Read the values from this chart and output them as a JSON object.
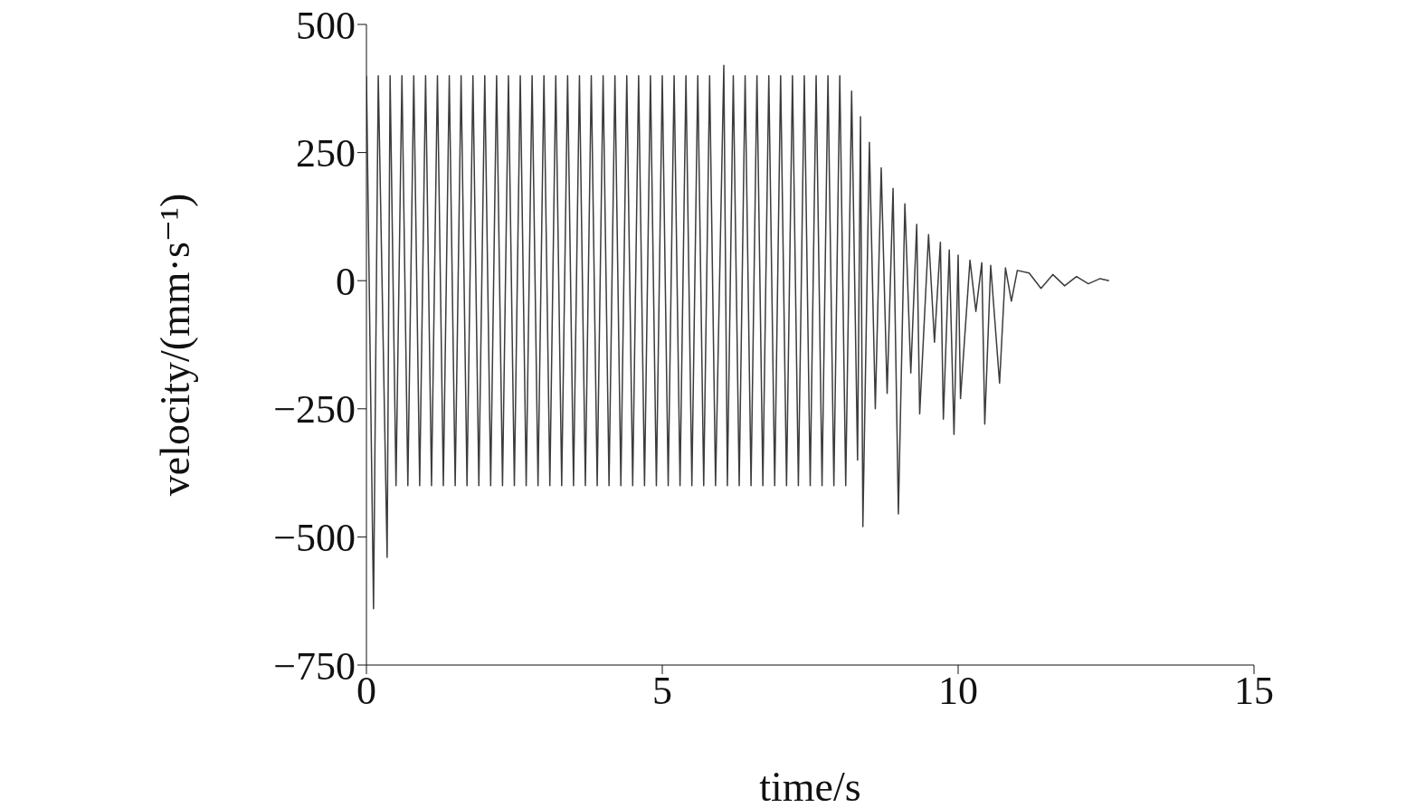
{
  "chart_data": {
    "type": "line",
    "xlabel": "time/s",
    "ylabel": "velocity/(mm·s⁻¹)",
    "xlim": [
      0,
      15
    ],
    "xticks": [
      0,
      5,
      10,
      15
    ],
    "ylim": [
      -750,
      500
    ],
    "yticks": [
      -750,
      -500,
      -250,
      0,
      250,
      500
    ],
    "marker": "none",
    "line_style": "solid",
    "x": [
      0,
      0.12,
      0.2,
      0.35,
      0.4,
      0.5,
      0.6,
      0.7,
      0.8,
      0.9,
      1,
      1.1,
      1.2,
      1.3,
      1.4,
      1.5,
      1.6,
      1.7,
      1.8,
      1.9,
      2,
      2.1,
      2.2,
      2.3,
      2.4,
      2.5,
      2.6,
      2.7,
      2.8,
      2.9,
      3,
      3.1,
      3.2,
      3.3,
      3.4,
      3.5,
      3.6,
      3.7,
      3.8,
      3.9,
      4,
      4.1,
      4.2,
      4.3,
      4.4,
      4.5,
      4.6,
      4.7,
      4.8,
      4.9,
      5,
      5.1,
      5.2,
      5.3,
      5.4,
      5.5,
      5.6,
      5.7,
      5.8,
      5.9,
      6.04,
      6.1,
      6.2,
      6.3,
      6.4,
      6.5,
      6.6,
      6.7,
      6.8,
      6.9,
      7,
      7.1,
      7.2,
      7.3,
      7.4,
      7.5,
      7.6,
      7.7,
      7.8,
      7.9,
      8,
      8.1,
      8.2,
      8.3,
      8.35,
      8.39,
      8.5,
      8.6,
      8.7,
      8.8,
      8.9,
      8.99,
      9.1,
      9.2,
      9.3,
      9.35,
      9.5,
      9.6,
      9.7,
      9.75,
      9.85,
      9.93,
      10,
      10.04,
      10.2,
      10.3,
      10.4,
      10.45,
      10.55,
      10.7,
      10.8,
      10.9,
      11,
      11.2,
      11.4,
      11.6,
      11.8,
      12,
      12.2,
      12.4,
      12.55
    ],
    "series": [
      {
        "color": "#3c3c3c",
        "values": [
          400,
          -640,
          400,
          -540,
          400,
          -400,
          400,
          -400,
          400,
          -400,
          400,
          -400,
          400,
          -400,
          400,
          -400,
          400,
          -400,
          400,
          -400,
          400,
          -400,
          400,
          -400,
          400,
          -400,
          400,
          -400,
          400,
          -400,
          400,
          -400,
          400,
          -400,
          400,
          -400,
          400,
          -400,
          400,
          -400,
          400,
          -400,
          400,
          -400,
          400,
          -400,
          400,
          -400,
          400,
          -400,
          400,
          -400,
          400,
          -400,
          400,
          -400,
          400,
          -400,
          400,
          -400,
          420,
          -400,
          400,
          -400,
          400,
          -400,
          400,
          -400,
          400,
          -400,
          400,
          -400,
          400,
          -400,
          400,
          -400,
          400,
          -400,
          400,
          -400,
          400,
          -400,
          370,
          -350,
          320,
          -480,
          270,
          -250,
          220,
          -220,
          180,
          -455,
          150,
          -180,
          110,
          -260,
          90,
          -120,
          75,
          -270,
          60,
          -300,
          50,
          -230,
          40,
          -60,
          35,
          -280,
          30,
          -200,
          25,
          -40,
          20,
          15,
          -15,
          12,
          -10,
          8,
          -6,
          4,
          0
        ]
      }
    ]
  }
}
